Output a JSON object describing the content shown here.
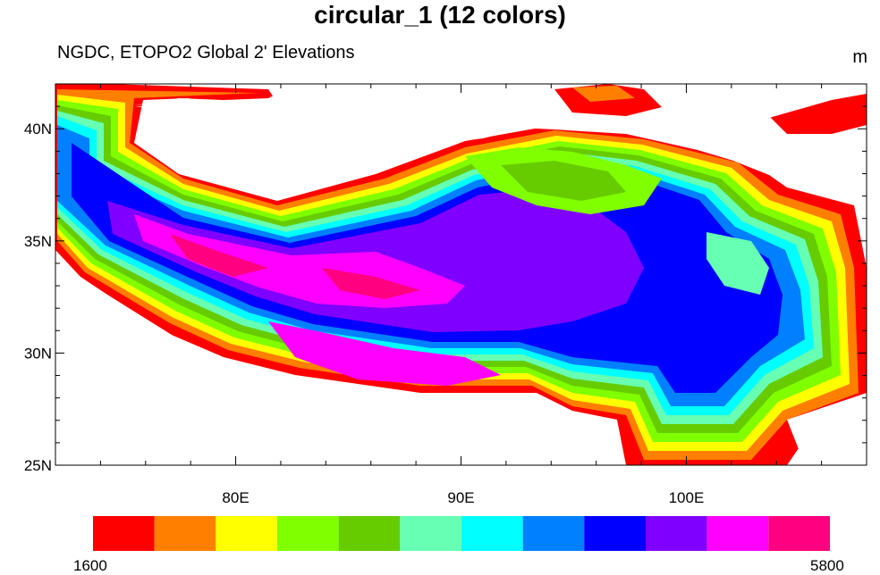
{
  "chart_data": {
    "type": "heatmap",
    "title": "circular_1 (12 colors)",
    "subtitle": "NGDC, ETOPO2 Global 2' Elevations",
    "units": "m",
    "x_range_deg": [
      72,
      108
    ],
    "y_range_deg": [
      25,
      42
    ],
    "x_ticks": [
      {
        "value": 80,
        "label": "80E"
      },
      {
        "value": 90,
        "label": "90E"
      },
      {
        "value": 100,
        "label": "100E"
      }
    ],
    "y_ticks": [
      {
        "value": 25,
        "label": "25N"
      },
      {
        "value": 30,
        "label": "30N"
      },
      {
        "value": 35,
        "label": "35N"
      },
      {
        "value": 40,
        "label": "40N"
      }
    ],
    "colorbar": {
      "min_label": "1600",
      "max_label": "5800",
      "colors": [
        "#ff0000",
        "#ff7f00",
        "#ffff00",
        "#80ff00",
        "#66cc00",
        "#66ffb3",
        "#00ffff",
        "#0080ff",
        "#0000ff",
        "#8000ff",
        "#ff00ff",
        "#ff0080"
      ]
    }
  }
}
